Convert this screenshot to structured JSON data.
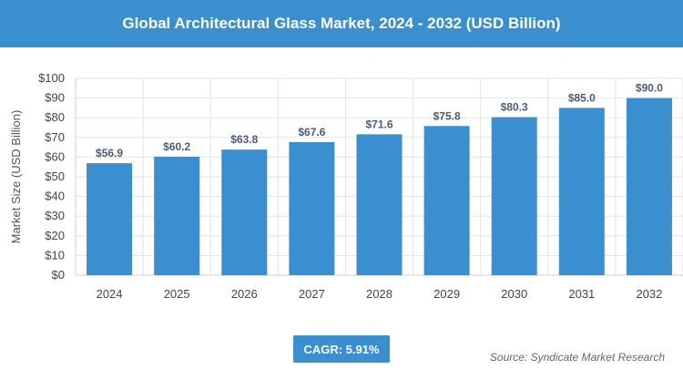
{
  "header": {
    "title": "Global Architectural Glass Market, 2024 - 2032 (USD Billion)"
  },
  "footer": {
    "cagr": "CAGR: 5.91%",
    "source": "Source: Syndicate Market Research"
  },
  "colors": {
    "bar": "#3a8fd0",
    "header": "#3a8fd0",
    "grid": "#e3e3e3"
  },
  "chart_data": {
    "type": "bar",
    "title": "Global Architectural Glass Market, 2024 - 2032 (USD Billion)",
    "categories": [
      "2024",
      "2025",
      "2026",
      "2027",
      "2028",
      "2029",
      "2030",
      "2031",
      "2032"
    ],
    "values": [
      56.9,
      60.2,
      63.8,
      67.6,
      71.6,
      75.8,
      80.3,
      85.0,
      90.0
    ],
    "data_labels": [
      "$56.9",
      "$60.2",
      "$63.8",
      "$67.6",
      "$71.6",
      "$75.8",
      "$80.3",
      "$85.0",
      "$90.0"
    ],
    "xlabel": "",
    "ylabel": "Market Size (USD Billion)",
    "ylim": [
      0,
      100
    ],
    "yticks": [
      0,
      10,
      20,
      30,
      40,
      50,
      60,
      70,
      80,
      90,
      100
    ],
    "ytick_labels": [
      "$0",
      "$10",
      "$20",
      "$30",
      "$40",
      "$50",
      "$60",
      "$70",
      "$80",
      "$90",
      "$100"
    ],
    "grid": true,
    "legend": "none"
  }
}
